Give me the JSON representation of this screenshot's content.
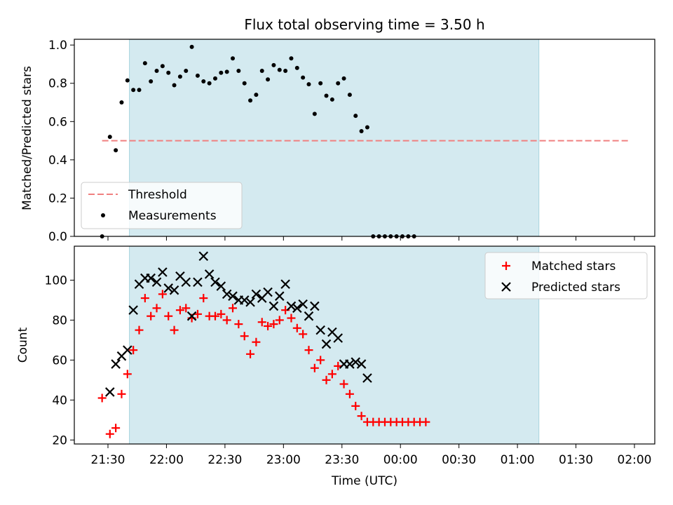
{
  "chart_data": [
    {
      "type": "scatter",
      "title": "Flux total observing time = 3.50 h",
      "xlabel": "",
      "ylabel": "Matched/Predicted stars",
      "ylim": [
        0.0,
        1.03
      ],
      "yticks": [
        "0.0",
        "0.2",
        "0.4",
        "0.6",
        "0.8",
        "1.0"
      ],
      "shaded_interval": [
        "21:41",
        "01:11"
      ],
      "shade_color": "#d4eaf0",
      "legend": {
        "placement": "lower-left",
        "entries": [
          "Threshold",
          "Measurements"
        ]
      },
      "threshold": {
        "name": "Threshold",
        "value": 0.5,
        "x_range": [
          "21:27",
          "01:57"
        ],
        "color": "#f08080"
      },
      "series": [
        {
          "name": "Measurements",
          "color": "#000000",
          "points": [
            [
              "21:27",
              0.0
            ],
            [
              "21:31",
              0.52
            ],
            [
              "21:34",
              0.45
            ],
            [
              "21:37",
              0.7
            ],
            [
              "21:40",
              0.815
            ],
            [
              "21:43",
              0.765
            ],
            [
              "21:46",
              0.765
            ],
            [
              "21:49",
              0.905
            ],
            [
              "21:52",
              0.81
            ],
            [
              "21:55",
              0.865
            ],
            [
              "21:58",
              0.89
            ],
            [
              "22:01",
              0.855
            ],
            [
              "22:04",
              0.79
            ],
            [
              "22:07",
              0.835
            ],
            [
              "22:10",
              0.865
            ],
            [
              "22:13",
              0.99
            ],
            [
              "22:16",
              0.84
            ],
            [
              "22:19",
              0.81
            ],
            [
              "22:22",
              0.8
            ],
            [
              "22:25",
              0.825
            ],
            [
              "22:28",
              0.855
            ],
            [
              "22:31",
              0.86
            ],
            [
              "22:34",
              0.93
            ],
            [
              "22:37",
              0.865
            ],
            [
              "22:40",
              0.8
            ],
            [
              "22:43",
              0.71
            ],
            [
              "22:46",
              0.74
            ],
            [
              "22:49",
              0.865
            ],
            [
              "22:52",
              0.82
            ],
            [
              "22:55",
              0.895
            ],
            [
              "22:58",
              0.87
            ],
            [
              "23:01",
              0.865
            ],
            [
              "23:04",
              0.93
            ],
            [
              "23:07",
              0.88
            ],
            [
              "23:10",
              0.83
            ],
            [
              "23:13",
              0.795
            ],
            [
              "23:16",
              0.64
            ],
            [
              "23:19",
              0.8
            ],
            [
              "23:22",
              0.735
            ],
            [
              "23:25",
              0.715
            ],
            [
              "23:28",
              0.8
            ],
            [
              "23:31",
              0.825
            ],
            [
              "23:34",
              0.74
            ],
            [
              "23:37",
              0.63
            ],
            [
              "23:40",
              0.55
            ],
            [
              "23:43",
              0.57
            ],
            [
              "23:46",
              0.0
            ],
            [
              "23:49",
              0.0
            ],
            [
              "23:52",
              0.0
            ],
            [
              "23:55",
              0.0
            ],
            [
              "23:58",
              0.0
            ],
            [
              "00:01",
              0.0
            ],
            [
              "00:04",
              0.0
            ],
            [
              "00:07",
              0.0
            ]
          ]
        }
      ]
    },
    {
      "type": "scatter",
      "xlabel": "Time (UTC)",
      "ylabel": "Count",
      "ylim": [
        18,
        117
      ],
      "yticks": [
        "20",
        "40",
        "60",
        "80",
        "100"
      ],
      "xticks": [
        "21:30",
        "22:00",
        "22:30",
        "23:00",
        "23:30",
        "00:00",
        "00:30",
        "01:00",
        "01:30",
        "02:00"
      ],
      "shaded_interval": [
        "21:41",
        "01:11"
      ],
      "shade_color": "#d4eaf0",
      "legend": {
        "placement": "upper-right",
        "entries": [
          "Matched stars",
          "Predicted stars"
        ]
      },
      "series": [
        {
          "name": "Matched stars",
          "marker": "+",
          "color": "#ff0000",
          "points": [
            [
              "21:27",
              41
            ],
            [
              "21:31",
              23
            ],
            [
              "21:34",
              26
            ],
            [
              "21:37",
              43
            ],
            [
              "21:40",
              53
            ],
            [
              "21:43",
              65
            ],
            [
              "21:46",
              75
            ],
            [
              "21:49",
              91
            ],
            [
              "21:52",
              82
            ],
            [
              "21:55",
              86
            ],
            [
              "21:58",
              93
            ],
            [
              "22:01",
              82
            ],
            [
              "22:04",
              75
            ],
            [
              "22:07",
              85
            ],
            [
              "22:10",
              86
            ],
            [
              "22:13",
              81
            ],
            [
              "22:16",
              83
            ],
            [
              "22:19",
              91
            ],
            [
              "22:22",
              82
            ],
            [
              "22:25",
              82
            ],
            [
              "22:28",
              83
            ],
            [
              "22:31",
              80
            ],
            [
              "22:34",
              86
            ],
            [
              "22:37",
              78
            ],
            [
              "22:40",
              72
            ],
            [
              "22:43",
              63
            ],
            [
              "22:46",
              69
            ],
            [
              "22:49",
              79
            ],
            [
              "22:52",
              77
            ],
            [
              "22:55",
              78
            ],
            [
              "22:58",
              80
            ],
            [
              "23:01",
              85
            ],
            [
              "23:04",
              81
            ],
            [
              "23:07",
              76
            ],
            [
              "23:10",
              73
            ],
            [
              "23:13",
              65
            ],
            [
              "23:16",
              56
            ],
            [
              "23:19",
              60
            ],
            [
              "23:22",
              50
            ],
            [
              "23:25",
              53
            ],
            [
              "23:28",
              57
            ],
            [
              "23:31",
              48
            ],
            [
              "23:34",
              43
            ],
            [
              "23:37",
              37
            ],
            [
              "23:40",
              32
            ],
            [
              "23:43",
              29
            ],
            [
              "23:46",
              29
            ],
            [
              "23:49",
              29
            ],
            [
              "23:52",
              29
            ],
            [
              "23:55",
              29
            ],
            [
              "23:58",
              29
            ],
            [
              "00:01",
              29
            ],
            [
              "00:04",
              29
            ],
            [
              "00:07",
              29
            ],
            [
              "00:10",
              29
            ],
            [
              "00:13",
              29
            ]
          ]
        },
        {
          "name": "Predicted stars",
          "marker": "x",
          "color": "#000000",
          "points": [
            [
              "21:31",
              44
            ],
            [
              "21:34",
              58
            ],
            [
              "21:37",
              62
            ],
            [
              "21:40",
              65
            ],
            [
              "21:43",
              85
            ],
            [
              "21:46",
              98
            ],
            [
              "21:49",
              101
            ],
            [
              "21:52",
              101
            ],
            [
              "21:55",
              99
            ],
            [
              "21:58",
              104
            ],
            [
              "22:01",
              96
            ],
            [
              "22:04",
              95
            ],
            [
              "22:07",
              102
            ],
            [
              "22:10",
              99
            ],
            [
              "22:13",
              82
            ],
            [
              "22:16",
              99
            ],
            [
              "22:19",
              112
            ],
            [
              "22:22",
              103
            ],
            [
              "22:25",
              99
            ],
            [
              "22:28",
              97
            ],
            [
              "22:31",
              93
            ],
            [
              "22:34",
              92
            ],
            [
              "22:37",
              90
            ],
            [
              "22:40",
              90
            ],
            [
              "22:43",
              89
            ],
            [
              "22:46",
              93
            ],
            [
              "22:49",
              91
            ],
            [
              "22:52",
              94
            ],
            [
              "22:55",
              87
            ],
            [
              "22:58",
              92
            ],
            [
              "23:01",
              98
            ],
            [
              "23:04",
              87
            ],
            [
              "23:07",
              86
            ],
            [
              "23:10",
              88
            ],
            [
              "23:13",
              82
            ],
            [
              "23:16",
              87
            ],
            [
              "23:19",
              75
            ],
            [
              "23:22",
              68
            ],
            [
              "23:25",
              74
            ],
            [
              "23:28",
              71
            ],
            [
              "23:31",
              58
            ],
            [
              "23:34",
              58
            ],
            [
              "23:37",
              59
            ],
            [
              "23:40",
              58
            ],
            [
              "23:43",
              51
            ]
          ]
        }
      ]
    }
  ]
}
